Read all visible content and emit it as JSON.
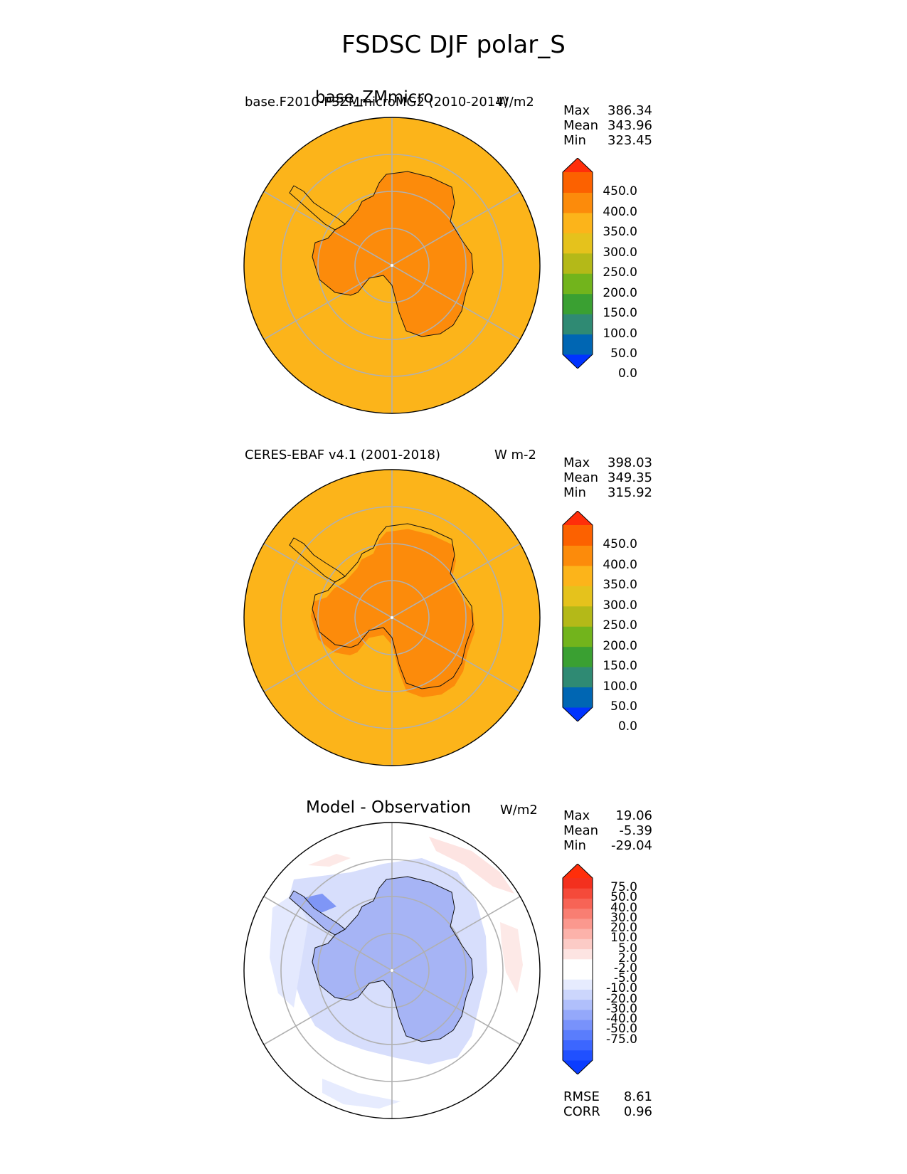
{
  "title": "FSDSC DJF polar_S",
  "panels": [
    {
      "title": "base_ZMmicro",
      "left_label": "base.F2010-P3ZMmicroMG2 (2010-2014)",
      "right_label": "W/m2",
      "stats": [
        {
          "label": "Max",
          "value": "386.34"
        },
        {
          "label": "Mean",
          "value": "343.96"
        },
        {
          "label": "Min",
          "value": "323.45"
        }
      ],
      "ocean_color": "#fcb41a",
      "land_color": "#fc8b0b",
      "colorbar": {
        "colors": [
          "#0033ff",
          "#0066b3",
          "#2f8a73",
          "#3aa032",
          "#72b41c",
          "#b4b918",
          "#e5c21c",
          "#fcb41a",
          "#fc8b0b",
          "#fc6100",
          "#ff2e0a"
        ],
        "ticks": [
          "450.0",
          "400.0",
          "350.0",
          "300.0",
          "250.0",
          "200.0",
          "150.0",
          "100.0",
          "50.0",
          "0.0"
        ]
      }
    },
    {
      "title": "",
      "left_label": "CERES-EBAF v4.1 (2001-2018)",
      "right_label": "W m-2",
      "stats": [
        {
          "label": "Max",
          "value": "398.03"
        },
        {
          "label": "Mean",
          "value": "349.35"
        },
        {
          "label": "Min",
          "value": "315.92"
        }
      ],
      "ocean_color": "#fcb41a",
      "land_color": "#fc8b0b",
      "colorbar": {
        "colors": [
          "#0033ff",
          "#0066b3",
          "#2f8a73",
          "#3aa032",
          "#72b41c",
          "#b4b918",
          "#e5c21c",
          "#fcb41a",
          "#fc8b0b",
          "#fc6100",
          "#ff2e0a"
        ],
        "ticks": [
          "450.0",
          "400.0",
          "350.0",
          "300.0",
          "250.0",
          "200.0",
          "150.0",
          "100.0",
          "50.0",
          "0.0"
        ]
      }
    },
    {
      "title": "Model - Observation",
      "left_label": "",
      "right_label": "W/m2",
      "stats": [
        {
          "label": "Max",
          "value": "19.06"
        },
        {
          "label": "Mean",
          "value": "-5.39"
        },
        {
          "label": "Min",
          "value": "-29.04"
        }
      ],
      "ocean_color": "#ffffff",
      "land_color": "#a6b4f5",
      "colorbar": {
        "colors": [
          "#0a3cff",
          "#2050ff",
          "#3c66ff",
          "#5a7dfc",
          "#7892fb",
          "#94a8fa",
          "#b0bffb",
          "#ccd6fc",
          "#e6ebfe",
          "#ffffff",
          "#ffffff",
          "#fde4e2",
          "#fccbc6",
          "#fcb2aa",
          "#fb988e",
          "#f97e72",
          "#f76456",
          "#f54a3a",
          "#f3301e",
          "#ff2e0a"
        ],
        "ticks": [
          "75.0",
          "50.0",
          "40.0",
          "30.0",
          "20.0",
          "10.0",
          "5.0",
          "2.0",
          "-2.0",
          "-5.0",
          "-10.0",
          "-20.0",
          "-30.0",
          "-40.0",
          "-50.0",
          "-75.0"
        ]
      },
      "extra_stats": [
        {
          "label": "RMSE",
          "value": "8.61"
        },
        {
          "label": "CORR",
          "value": "0.96"
        }
      ]
    }
  ]
}
